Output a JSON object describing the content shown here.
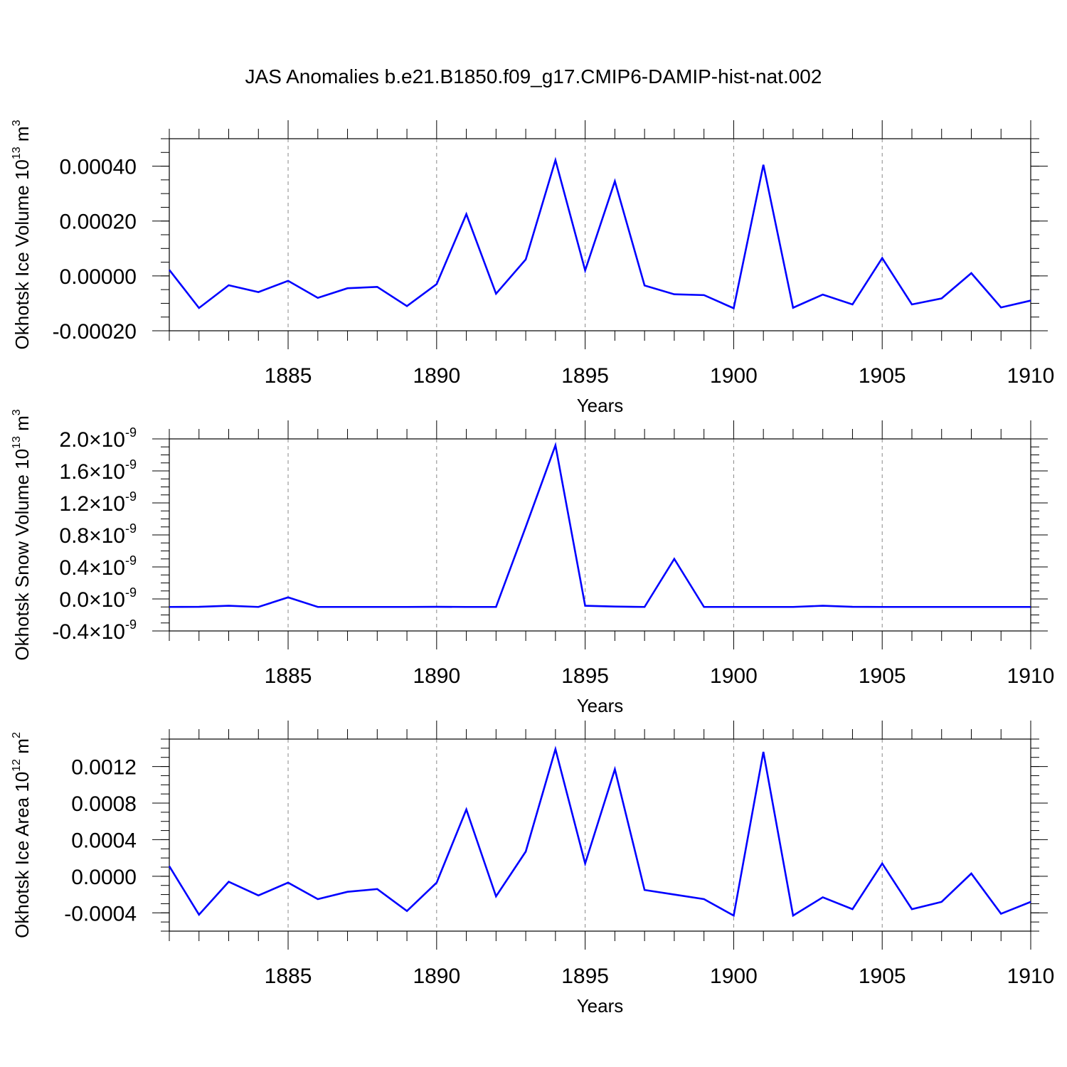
{
  "title": "JAS Anomalies b.e21.B1850.f09_g17.CMIP6-DAMIP-hist-nat.002",
  "colors": {
    "line": "#0000ff",
    "axis": "#000000",
    "grid": "#888888"
  },
  "chart_data": [
    {
      "type": "line",
      "name": "ice-volume",
      "xlabel": "Years",
      "ylabel_main": "Okhotsk Ice Volume 10",
      "ylabel_exp": "13",
      "ylabel_unit": " m",
      "ylabel_unit_exp": "3",
      "xlim": [
        1881,
        1910
      ],
      "ylim": [
        -0.0002,
        0.0005
      ],
      "xticks": [
        1885,
        1890,
        1895,
        1900,
        1905,
        1910
      ],
      "xtick_labels": [
        "1885",
        "1890",
        "1895",
        "1900",
        "1905",
        "1910"
      ],
      "yticks": [
        -0.0002,
        0.0,
        0.0002,
        0.0004
      ],
      "ytick_labels": [
        "-0.00020",
        "0.00000",
        "0.00020",
        "0.00040"
      ],
      "x": [
        1881,
        1882,
        1883,
        1884,
        1885,
        1886,
        1887,
        1888,
        1889,
        1890,
        1891,
        1892,
        1893,
        1894,
        1895,
        1896,
        1897,
        1898,
        1899,
        1900,
        1901,
        1902,
        1903,
        1904,
        1905,
        1906,
        1907,
        1908,
        1909,
        1910
      ],
      "values": [
        2.2e-05,
        -0.000117,
        -3.4e-05,
        -5.9e-05,
        -1.8e-05,
        -8e-05,
        -4.5e-05,
        -4e-05,
        -0.00011,
        -3e-05,
        0.000225,
        -6.5e-05,
        6e-05,
        0.000422,
        2e-05,
        0.000345,
        -3.5e-05,
        -6.7e-05,
        -7e-05,
        -0.000118,
        0.000405,
        -0.000116,
        -6.8e-05,
        -0.000104,
        6.5e-05,
        -0.000104,
        -8.2e-05,
        1e-05,
        -0.000115,
        -9e-05
      ]
    },
    {
      "type": "line",
      "name": "snow-volume",
      "xlabel": "Years",
      "ylabel_main": "Okhotsk Snow Volume 10",
      "ylabel_exp": "13",
      "ylabel_unit": " m",
      "ylabel_unit_exp": "3",
      "xlim": [
        1881,
        1910
      ],
      "ylim": [
        -4e-10,
        2e-09
      ],
      "xticks": [
        1885,
        1890,
        1895,
        1900,
        1905,
        1910
      ],
      "xtick_labels": [
        "1885",
        "1890",
        "1895",
        "1900",
        "1905",
        "1910"
      ],
      "yticks": [
        -4e-10,
        0.0,
        4e-10,
        8e-10,
        1.2e-09,
        1.6e-09,
        2e-09
      ],
      "ytick_mantissa": [
        "-0.4",
        "0.0",
        "0.4",
        "0.8",
        "1.2",
        "1.6",
        "2.0"
      ],
      "ytick_times": "×10",
      "ytick_exp": "-9",
      "x": [
        1881,
        1882,
        1883,
        1884,
        1885,
        1886,
        1887,
        1888,
        1889,
        1890,
        1891,
        1892,
        1893,
        1894,
        1895,
        1896,
        1897,
        1898,
        1899,
        1900,
        1901,
        1902,
        1903,
        1904,
        1905,
        1906,
        1907,
        1908,
        1909,
        1910
      ],
      "values": [
        -1e-10,
        -9.8e-11,
        -8.5e-11,
        -1e-10,
        2e-11,
        -1e-10,
        -1e-10,
        -1e-10,
        -1e-10,
        -9.8e-11,
        -1e-10,
        -1e-10,
        9e-10,
        1.92e-09,
        -8.5e-11,
        -9.5e-11,
        -1e-10,
        5e-10,
        -1e-10,
        -1e-10,
        -1e-10,
        -1e-10,
        -8.5e-11,
        -9.8e-11,
        -1e-10,
        -1e-10,
        -1e-10,
        -1e-10,
        -1e-10,
        -1e-10
      ]
    },
    {
      "type": "line",
      "name": "ice-area",
      "xlabel": "Years",
      "ylabel_main": "Okhotsk Ice Area 10",
      "ylabel_exp": "12",
      "ylabel_unit": " m",
      "ylabel_unit_exp": "2",
      "xlim": [
        1881,
        1910
      ],
      "ylim": [
        -0.0006,
        0.0015
      ],
      "xticks": [
        1885,
        1890,
        1895,
        1900,
        1905,
        1910
      ],
      "xtick_labels": [
        "1885",
        "1890",
        "1895",
        "1900",
        "1905",
        "1910"
      ],
      "yticks": [
        -0.0004,
        0.0,
        0.0004,
        0.0008,
        0.0012
      ],
      "ytick_labels": [
        "-0.0004",
        "0.0000",
        "0.0004",
        "0.0008",
        "0.0012"
      ],
      "x": [
        1881,
        1882,
        1883,
        1884,
        1885,
        1886,
        1887,
        1888,
        1889,
        1890,
        1891,
        1892,
        1893,
        1894,
        1895,
        1896,
        1897,
        1898,
        1899,
        1900,
        1901,
        1902,
        1903,
        1904,
        1905,
        1906,
        1907,
        1908,
        1909,
        1910
      ],
      "values": [
        0.00011,
        -0.00042,
        -6e-05,
        -0.00021,
        -7e-05,
        -0.00025,
        -0.00017,
        -0.00014,
        -0.00038,
        -7e-05,
        0.00073,
        -0.00022,
        0.00027,
        0.00139,
        0.00014,
        0.00117,
        -0.00015,
        -0.0002,
        -0.00025,
        -0.00043,
        0.00136,
        -0.00043,
        -0.00023,
        -0.00036,
        0.00014,
        -0.00036,
        -0.00028,
        3e-05,
        -0.00041,
        -0.00028
      ]
    }
  ]
}
